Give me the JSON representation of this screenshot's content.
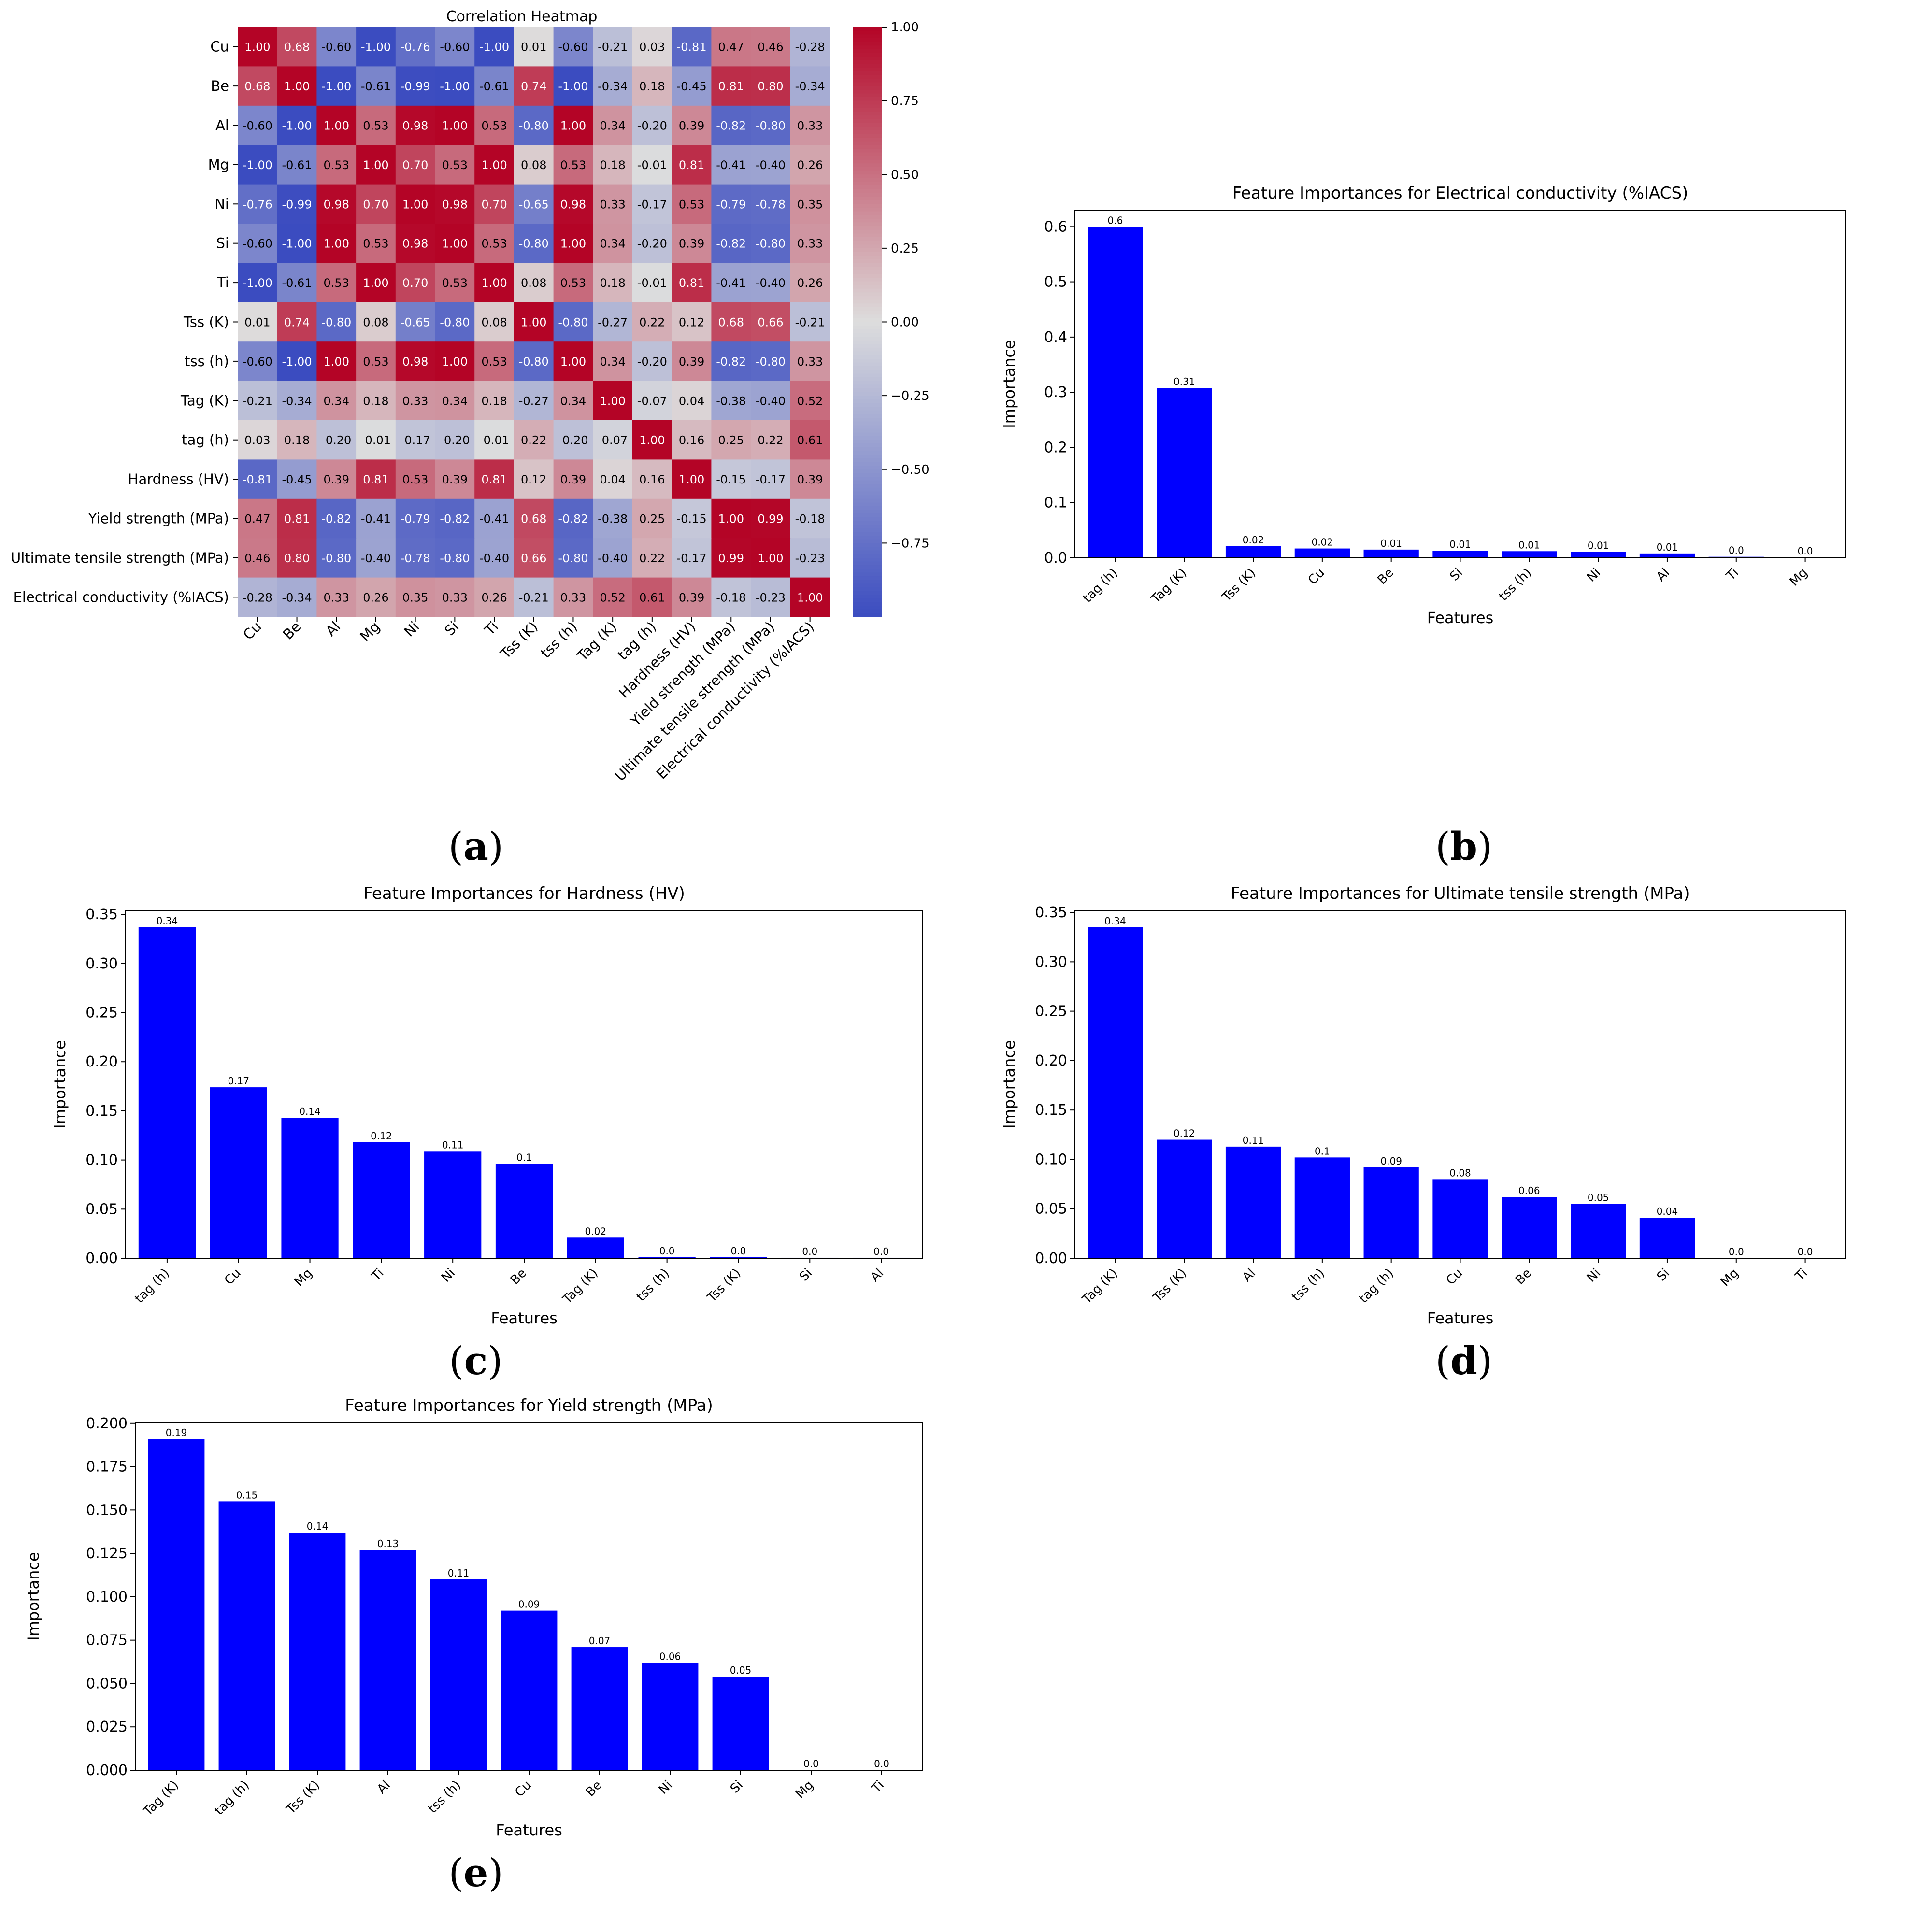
{
  "panels": [
    {
      "label": "a"
    },
    {
      "label": "b"
    },
    {
      "label": "c"
    },
    {
      "label": "d"
    },
    {
      "label": "e"
    }
  ],
  "heatmap": {
    "title": "Correlation Heatmap",
    "variables": [
      "Cu",
      "Be",
      "Al",
      "Mg",
      "Ni",
      "Si",
      "Ti",
      "Tss (K)",
      "tss (h)",
      "Tag (K)",
      "tag (h)",
      "Hardness (HV)",
      "Yield strength (MPa)",
      "Ultimate tensile strength (MPa)",
      "Electrical conductivity (%IACS)"
    ],
    "matrix": [
      [
        1.0,
        0.68,
        -0.6,
        -1.0,
        -0.76,
        -0.6,
        -1.0,
        0.01,
        -0.6,
        -0.21,
        0.03,
        -0.81,
        0.47,
        0.46,
        -0.28
      ],
      [
        0.68,
        1.0,
        -1.0,
        -0.61,
        -0.99,
        -1.0,
        -0.61,
        0.74,
        -1.0,
        -0.34,
        0.18,
        -0.45,
        0.81,
        0.8,
        -0.34
      ],
      [
        -0.6,
        -1.0,
        1.0,
        0.53,
        0.98,
        1.0,
        0.53,
        -0.8,
        1.0,
        0.34,
        -0.2,
        0.39,
        -0.82,
        -0.8,
        0.33
      ],
      [
        -1.0,
        -0.61,
        0.53,
        1.0,
        0.7,
        0.53,
        1.0,
        0.08,
        0.53,
        0.18,
        -0.01,
        0.81,
        -0.41,
        -0.4,
        0.26
      ],
      [
        -0.76,
        -0.99,
        0.98,
        0.7,
        1.0,
        0.98,
        0.7,
        -0.65,
        0.98,
        0.33,
        -0.17,
        0.53,
        -0.79,
        -0.78,
        0.35
      ],
      [
        -0.6,
        -1.0,
        1.0,
        0.53,
        0.98,
        1.0,
        0.53,
        -0.8,
        1.0,
        0.34,
        -0.2,
        0.39,
        -0.82,
        -0.8,
        0.33
      ],
      [
        -1.0,
        -0.61,
        0.53,
        1.0,
        0.7,
        0.53,
        1.0,
        0.08,
        0.53,
        0.18,
        -0.01,
        0.81,
        -0.41,
        -0.4,
        0.26
      ],
      [
        0.01,
        0.74,
        -0.8,
        0.08,
        -0.65,
        -0.8,
        0.08,
        1.0,
        -0.8,
        -0.27,
        0.22,
        0.12,
        0.68,
        0.66,
        -0.21
      ],
      [
        -0.6,
        -1.0,
        1.0,
        0.53,
        0.98,
        1.0,
        0.53,
        -0.8,
        1.0,
        0.34,
        -0.2,
        0.39,
        -0.82,
        -0.8,
        0.33
      ],
      [
        -0.21,
        -0.34,
        0.34,
        0.18,
        0.33,
        0.34,
        0.18,
        -0.27,
        0.34,
        1.0,
        -0.07,
        0.04,
        -0.38,
        -0.4,
        0.52
      ],
      [
        0.03,
        0.18,
        -0.2,
        -0.01,
        -0.17,
        -0.2,
        -0.01,
        0.22,
        -0.2,
        -0.07,
        1.0,
        0.16,
        0.25,
        0.22,
        0.61
      ],
      [
        -0.81,
        -0.45,
        0.39,
        0.81,
        0.53,
        0.39,
        0.81,
        0.12,
        0.39,
        0.04,
        0.16,
        1.0,
        -0.15,
        -0.17,
        0.39
      ],
      [
        0.47,
        0.81,
        -0.82,
        -0.41,
        -0.79,
        -0.82,
        -0.41,
        0.68,
        -0.82,
        -0.38,
        0.25,
        -0.15,
        1.0,
        0.99,
        -0.18
      ],
      [
        0.46,
        0.8,
        -0.8,
        -0.4,
        -0.78,
        -0.8,
        -0.4,
        0.66,
        -0.8,
        -0.4,
        0.22,
        -0.17,
        0.99,
        1.0,
        -0.23
      ],
      [
        -0.28,
        -0.34,
        0.33,
        0.26,
        0.35,
        0.33,
        0.26,
        -0.21,
        0.33,
        0.52,
        0.61,
        0.39,
        -0.18,
        -0.23,
        1.0
      ]
    ],
    "colorbar_ticks": [
      "1.00",
      "0.75",
      "0.50",
      "0.25",
      "0.00",
      "−0.25",
      "−0.50",
      "−0.75"
    ],
    "colorbar_values": [
      1.0,
      0.75,
      0.5,
      0.25,
      0.0,
      -0.25,
      -0.5,
      -0.75
    ],
    "colormap": {
      "low": "#3b4cc0",
      "mid": "#dddddd",
      "high": "#b40426"
    }
  },
  "chart_data": [
    {
      "type": "bar",
      "title": "Feature Importances for Electrical conductivity (%IACS)",
      "xlabel": "Features",
      "ylabel": "Importance",
      "categories": [
        "tag (h)",
        "Tag (K)",
        "Tss (K)",
        "Cu",
        "Be",
        "Si",
        "tss (h)",
        "Ni",
        "Al",
        "Ti",
        "Mg"
      ],
      "values": [
        0.6,
        0.31,
        0.02,
        0.02,
        0.01,
        0.01,
        0.01,
        0.01,
        0.01,
        0.0,
        0.0
      ],
      "heights": [
        0.6,
        0.308,
        0.021,
        0.017,
        0.015,
        0.013,
        0.012,
        0.011,
        0.008,
        0.002,
        0.001
      ],
      "data_labels": [
        "0.6",
        "0.31",
        "0.02",
        "0.02",
        "0.01",
        "0.01",
        "0.01",
        "0.01",
        "0.01",
        "0.0",
        "0.0"
      ],
      "yticks": [
        "0.0",
        "0.1",
        "0.2",
        "0.3",
        "0.4",
        "0.5",
        "0.6"
      ],
      "ytick_values": [
        0,
        0.1,
        0.2,
        0.3,
        0.4,
        0.5,
        0.6
      ],
      "ylim": [
        0,
        0.63
      ],
      "bar_color": "#0000ff"
    },
    {
      "type": "bar",
      "title": "Feature Importances for Hardness (HV)",
      "xlabel": "Features",
      "ylabel": "Importance",
      "categories": [
        "tag (h)",
        "Cu",
        "Mg",
        "Ti",
        "Ni",
        "Be",
        "Tag (K)",
        "tss (h)",
        "Tss (K)",
        "Si",
        "Al"
      ],
      "values": [
        0.34,
        0.17,
        0.14,
        0.12,
        0.11,
        0.1,
        0.02,
        0.0,
        0.0,
        0.0,
        0.0
      ],
      "heights": [
        0.337,
        0.174,
        0.143,
        0.118,
        0.109,
        0.096,
        0.021,
        0.001,
        0.001,
        0.0005,
        0.0005
      ],
      "data_labels": [
        "0.34",
        "0.17",
        "0.14",
        "0.12",
        "0.11",
        "0.1",
        "0.02",
        "0.0",
        "0.0",
        "0.0",
        "0.0"
      ],
      "yticks": [
        "0.00",
        "0.05",
        "0.10",
        "0.15",
        "0.20",
        "0.25",
        "0.30",
        "0.35"
      ],
      "ytick_values": [
        0,
        0.05,
        0.1,
        0.15,
        0.2,
        0.25,
        0.3,
        0.35
      ],
      "ylim": [
        0,
        0.354
      ],
      "bar_color": "#0000ff"
    },
    {
      "type": "bar",
      "title": "Feature Importances for Ultimate tensile strength (MPa)",
      "xlabel": "Features",
      "ylabel": "Importance",
      "categories": [
        "Tag (K)",
        "Tss (K)",
        "Al",
        "tss (h)",
        "tag (h)",
        "Cu",
        "Be",
        "Ni",
        "Si",
        "Mg",
        "Ti"
      ],
      "values": [
        0.34,
        0.12,
        0.11,
        0.1,
        0.09,
        0.08,
        0.06,
        0.05,
        0.04,
        0.0,
        0.0
      ],
      "heights": [
        0.335,
        0.12,
        0.113,
        0.102,
        0.092,
        0.08,
        0.062,
        0.055,
        0.041,
        0.0003,
        0.0003
      ],
      "data_labels": [
        "0.34",
        "0.12",
        "0.11",
        "0.1",
        "0.09",
        "0.08",
        "0.06",
        "0.05",
        "0.04",
        "0.0",
        "0.0"
      ],
      "yticks": [
        "0.00",
        "0.05",
        "0.10",
        "0.15",
        "0.20",
        "0.25",
        "0.30",
        "0.35"
      ],
      "ytick_values": [
        0,
        0.05,
        0.1,
        0.15,
        0.2,
        0.25,
        0.3,
        0.35
      ],
      "ylim": [
        0,
        0.352
      ],
      "bar_color": "#0000ff"
    },
    {
      "type": "bar",
      "title": "Feature Importances for Yield strength (MPa)",
      "xlabel": "Features",
      "ylabel": "Importance",
      "categories": [
        "Tag (K)",
        "tag (h)",
        "Tss (K)",
        "Al",
        "tss (h)",
        "Cu",
        "Be",
        "Ni",
        "Si",
        "Mg",
        "Ti"
      ],
      "values": [
        0.19,
        0.15,
        0.14,
        0.13,
        0.11,
        0.09,
        0.07,
        0.06,
        0.05,
        0.0,
        0.0
      ],
      "heights": [
        0.191,
        0.155,
        0.137,
        0.127,
        0.11,
        0.092,
        0.071,
        0.062,
        0.054,
        0.0002,
        0.0002
      ],
      "data_labels": [
        "0.19",
        "0.15",
        "0.14",
        "0.13",
        "0.11",
        "0.09",
        "0.07",
        "0.06",
        "0.05",
        "0.0",
        "0.0"
      ],
      "yticks": [
        "0.000",
        "0.025",
        "0.050",
        "0.075",
        "0.100",
        "0.125",
        "0.150",
        "0.175",
        "0.200"
      ],
      "ytick_values": [
        0,
        0.025,
        0.05,
        0.075,
        0.1,
        0.125,
        0.15,
        0.175,
        0.2
      ],
      "ylim": [
        0,
        0.2005
      ],
      "bar_color": "#0000ff"
    }
  ]
}
